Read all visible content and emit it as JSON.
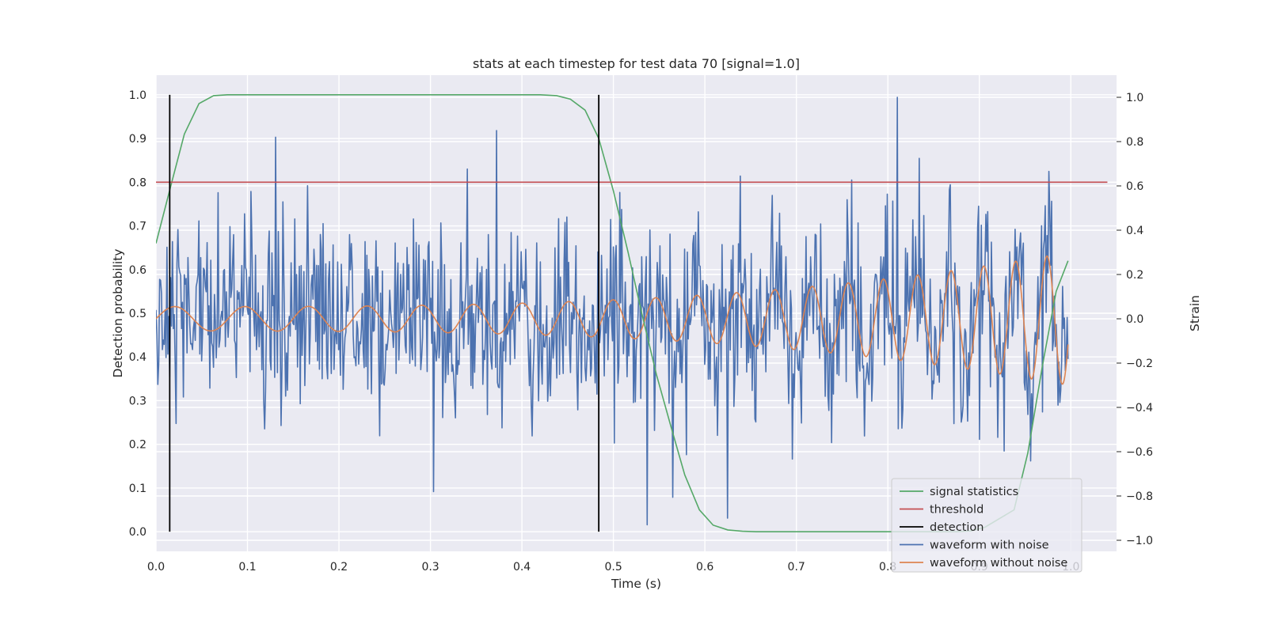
{
  "chart_data": {
    "type": "line",
    "title": "stats at each timestep for test data 70 [signal=1.0]",
    "xlabel": "Time (s)",
    "ylabel_left": "Detection probability",
    "ylabel_right": "Strain",
    "xlim": [
      0.0,
      1.05
    ],
    "ylim_left": [
      -0.045,
      1.045
    ],
    "ylim_right": [
      -1.05,
      1.1
    ],
    "x_ticks": [
      0.0,
      0.1,
      0.2,
      0.3,
      0.4,
      0.5,
      0.6,
      0.7,
      0.8,
      0.9,
      1.0
    ],
    "x_tick_labels": [
      "0.0",
      "0.1",
      "0.2",
      "0.3",
      "0.4",
      "0.5",
      "0.6",
      "0.7",
      "0.8",
      "0.9",
      "1.0"
    ],
    "y_left_ticks": [
      0.0,
      0.1,
      0.2,
      0.3,
      0.4,
      0.5,
      0.6,
      0.7,
      0.8,
      0.9,
      1.0
    ],
    "y_left_tick_labels": [
      "0.0",
      "0.1",
      "0.2",
      "0.3",
      "0.4",
      "0.5",
      "0.6",
      "0.7",
      "0.8",
      "0.9",
      "1.0"
    ],
    "y_right_ticks": [
      -1.0,
      -0.8,
      -0.6,
      -0.4,
      -0.2,
      0.0,
      0.2,
      0.4,
      0.6,
      0.8,
      1.0
    ],
    "y_right_tick_labels": [
      "−1.0",
      "−0.8",
      "−0.6",
      "−0.4",
      "−0.2",
      "0.0",
      "0.2",
      "0.4",
      "0.6",
      "0.8",
      "1.0"
    ],
    "grid": true,
    "legend_position": "lower right",
    "colors": {
      "background": "#eaeaf2",
      "grid": "#ffffff",
      "signal": "#55a868",
      "threshold": "#c44e52",
      "detection": "#000000",
      "noisy": "#4c72b0",
      "clean": "#dd8452"
    },
    "legend": [
      {
        "label": "signal statistics",
        "series": "signal"
      },
      {
        "label": "threshold",
        "series": "threshold"
      },
      {
        "label": "detection",
        "series": "detection"
      },
      {
        "label": "waveform with noise",
        "series": "noisy"
      },
      {
        "label": "waveform without noise",
        "series": "clean"
      }
    ],
    "series": [
      {
        "name": "signal statistics",
        "axis": "left",
        "x": [
          0.0,
          0.016,
          0.031,
          0.047,
          0.063,
          0.078,
          0.094,
          0.11,
          0.2,
          0.3,
          0.4,
          0.42,
          0.438,
          0.453,
          0.469,
          0.484,
          0.5,
          0.516,
          0.531,
          0.547,
          0.563,
          0.578,
          0.594,
          0.609,
          0.625,
          0.641,
          0.656,
          0.7,
          0.75,
          0.8,
          0.85,
          0.875,
          0.891,
          0.906,
          0.922,
          0.938,
          0.953,
          0.969,
          0.984,
          0.997
        ],
        "y": [
          0.66,
          0.79,
          0.91,
          0.98,
          0.998,
          1.0,
          1.0,
          1.0,
          1.0,
          1.0,
          1.0,
          1.0,
          0.998,
          0.99,
          0.965,
          0.9,
          0.78,
          0.64,
          0.5,
          0.36,
          0.24,
          0.13,
          0.05,
          0.015,
          0.004,
          0.001,
          0.0,
          0.0,
          0.0,
          0.0,
          0.0,
          0.0,
          0.002,
          0.01,
          0.03,
          0.05,
          0.18,
          0.38,
          0.55,
          0.62
        ]
      },
      {
        "name": "threshold",
        "axis": "left",
        "x": [
          0.0,
          1.04
        ],
        "y": [
          0.8,
          0.8
        ]
      },
      {
        "name": "detection",
        "axis": "left",
        "segments": [
          {
            "x": 0.015,
            "y": [
              0.0,
              1.0
            ]
          },
          {
            "x": 0.484,
            "y": [
              0.0,
              1.0
            ]
          }
        ]
      },
      {
        "name": "waveform with noise",
        "axis": "right",
        "description_only": "Gaussian noise around the clean waveform, sampled about 1024 times over 0 to 1.0 s, roughly within -0.95 to 1.0",
        "x_range": [
          0.0,
          0.997
        ],
        "n_points": 1000,
        "noise_sd": 0.2,
        "marked_extremes": [
          {
            "x": 0.81,
            "y": 1.0
          },
          {
            "x": 0.537,
            "y": -0.93
          },
          {
            "x": 0.131,
            "y": 0.82
          },
          {
            "x": 0.372,
            "y": 0.85
          },
          {
            "x": 0.303,
            "y": -0.78
          },
          {
            "x": 0.625,
            "y": -0.9
          }
        ]
      },
      {
        "name": "waveform without noise",
        "axis": "right",
        "x_range": [
          0.0,
          0.997
        ],
        "amplitude_start": 0.055,
        "amplitude_end": 0.3,
        "frequency_start_hz": 12,
        "frequency_end_hz": 30
      }
    ]
  }
}
